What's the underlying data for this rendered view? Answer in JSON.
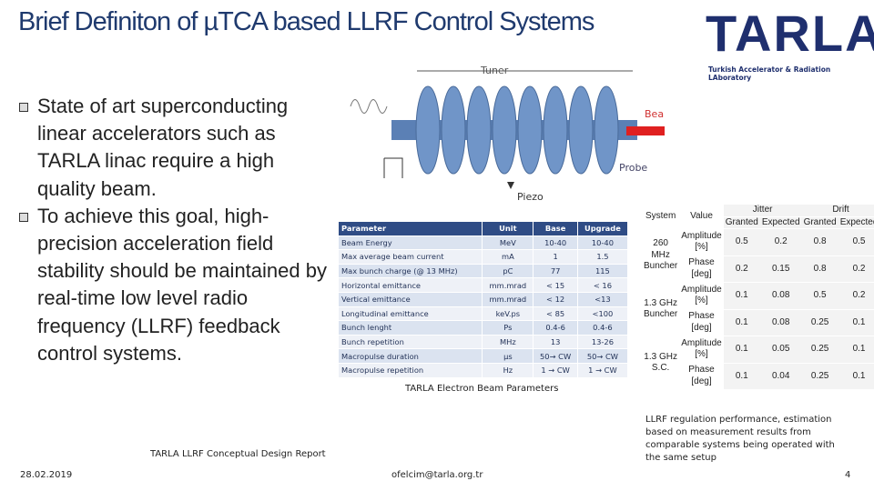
{
  "header": {
    "title": "Brief Definiton of µTCA based LLRF Control Systems"
  },
  "logo": {
    "name": "TARLA",
    "subtitle": "Turkish Accelerator & Radiation LAboratory"
  },
  "bullets": [
    "State of art superconducting linear accelerators such as TARLA linac require a high quality beam.",
    "To achieve this goal, high-precision acceleration field stability should be maintained by real-time low level radio frequency (LLRF) feedback control systems."
  ],
  "diagram": {
    "labels": [
      "Tuner",
      "Beam",
      "Probe",
      "Piezo"
    ]
  },
  "parameter_table": {
    "header": [
      "Parameter",
      "Unit",
      "Base",
      "Upgrade"
    ],
    "rows": [
      [
        "Beam Energy",
        "MeV",
        "10-40",
        "10-40"
      ],
      [
        "Max average beam current",
        "mA",
        "1",
        "1.5"
      ],
      [
        "Max bunch charge (@ 13 MHz)",
        "pC",
        "77",
        "115"
      ],
      [
        "Horizontal emittance",
        "mm.mrad",
        "< 15",
        "< 16"
      ],
      [
        "Vertical emittance",
        "mm.mrad",
        "< 12",
        "<13"
      ],
      [
        "Longitudinal emittance",
        "keV.ps",
        "< 85",
        "<100"
      ],
      [
        "Bunch lenght",
        "Ps",
        "0.4-6",
        "0.4-6"
      ],
      [
        "Bunch repetition",
        "MHz",
        "13",
        "13-26"
      ],
      [
        "Macropulse duration",
        "µs",
        "50→ CW",
        "50→ CW"
      ],
      [
        "Macropulse repetition",
        "Hz",
        "1 → CW",
        "1 → CW"
      ]
    ],
    "caption": "TARLA Electron Beam Parameters"
  },
  "performance_table": {
    "header": [
      "System",
      "Value",
      "Jitter",
      "Drift"
    ],
    "subheader": [
      "Granted",
      "Expected",
      "Granted",
      "Expected"
    ],
    "groups": [
      {
        "system": "260 MHz Buncher",
        "rows": [
          [
            "Amplitude [%]",
            "0.5",
            "0.2",
            "0.8",
            "0.5"
          ],
          [
            "Phase [deg]",
            "0.2",
            "0.15",
            "0.8",
            "0.2"
          ]
        ]
      },
      {
        "system": "1.3 GHz Buncher",
        "rows": [
          [
            "Amplitude [%]",
            "0.1",
            "0.08",
            "0.5",
            "0.2"
          ],
          [
            "Phase [deg]",
            "0.1",
            "0.08",
            "0.25",
            "0.1"
          ]
        ]
      },
      {
        "system": "1.3 GHz S.C.",
        "rows": [
          [
            "Amplitude [%]",
            "0.1",
            "0.05",
            "0.25",
            "0.1"
          ],
          [
            "Phase [deg]",
            "0.1",
            "0.04",
            "0.25",
            "0.1"
          ]
        ]
      }
    ],
    "caption": "LLRF regulation performance, estimation based on measurement results from comparable systems being operated with the same setup"
  },
  "footer": {
    "report": "TARLA LLRF Conceptual Design Report",
    "date": "28.02.2019",
    "email": "ofelcim@tarla.org.tr",
    "page": "4"
  }
}
